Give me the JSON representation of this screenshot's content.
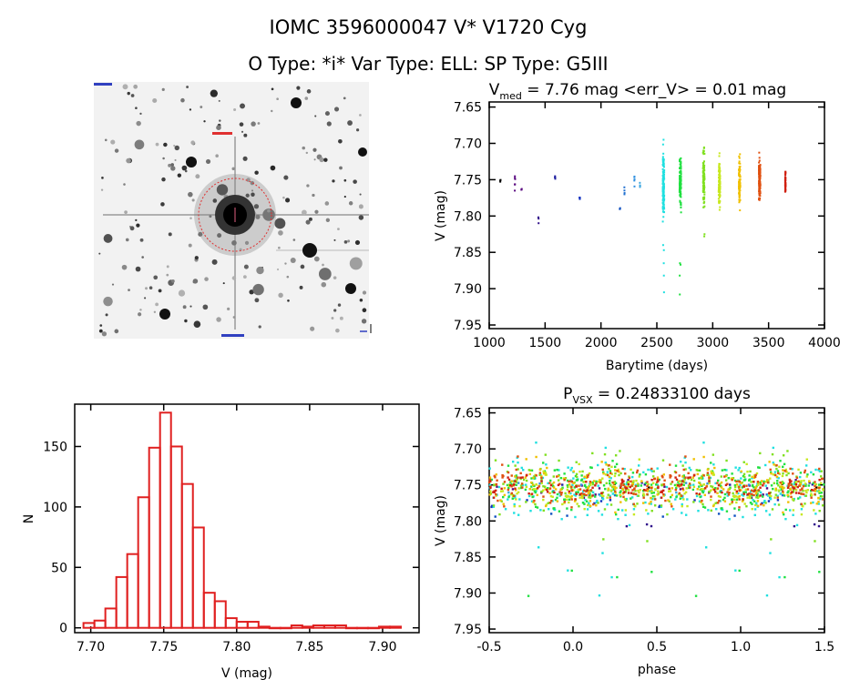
{
  "header": {
    "title": "IOMC 3596000047   V* V1720 Cyg",
    "subtitle": "O Type: *i*  Var Type: ELL:  SP Type: G5III"
  },
  "chart_data": [
    {
      "type": "image",
      "panel": "finding-chart",
      "description_colors": {
        "background": "#f4f4f4",
        "marker": "#e03030"
      }
    },
    {
      "type": "scatter",
      "panel": "light-curve",
      "title": {
        "main": "V",
        "sub": "med",
        "rest": " = 7.76 mag <err_V> = 0.01 mag"
      },
      "xlabel": "Barytime (days)",
      "ylabel": "V (mag)",
      "xlim": [
        1000,
        4000
      ],
      "ylim": [
        7.955,
        7.643
      ],
      "y_inverted": true,
      "xticks": [
        "1000",
        "1500",
        "2000",
        "2500",
        "3000",
        "3500",
        "4000"
      ],
      "yticks": [
        "7.65",
        "7.70",
        "7.75",
        "7.80",
        "7.85",
        "7.90",
        "7.95"
      ],
      "seasons": [
        {
          "time": 1100,
          "mag_min": 7.745,
          "mag_max": 7.76,
          "count": 3,
          "color": "#000000"
        },
        {
          "time": 1230,
          "mag_min": 7.735,
          "mag_max": 7.772,
          "count": 6,
          "color": "#5a0a80"
        },
        {
          "time": 1290,
          "mag_min": 7.758,
          "mag_max": 7.768,
          "count": 3,
          "color": "#5a0a80"
        },
        {
          "time": 1440,
          "mag_min": 7.788,
          "mag_max": 7.82,
          "count": 3,
          "color": "#30108a"
        },
        {
          "time": 1590,
          "mag_min": 7.744,
          "mag_max": 7.75,
          "count": 4,
          "color": "#2020a0"
        },
        {
          "time": 1810,
          "mag_min": 7.772,
          "mag_max": 7.78,
          "count": 6,
          "color": "#1030c0"
        },
        {
          "time": 2170,
          "mag_min": 7.785,
          "mag_max": 7.8,
          "count": 3,
          "color": "#1050c0"
        },
        {
          "time": 2210,
          "mag_min": 7.75,
          "mag_max": 7.775,
          "count": 4,
          "color": "#2070d0"
        },
        {
          "time": 2300,
          "mag_min": 7.725,
          "mag_max": 7.775,
          "count": 5,
          "color": "#3090e0"
        },
        {
          "time": 2350,
          "mag_min": 7.748,
          "mag_max": 7.765,
          "count": 4,
          "color": "#40a8e0"
        },
        {
          "time": 2560,
          "mag_min": 7.695,
          "mag_max": 7.82,
          "count": 120,
          "color": "#20e0e0",
          "outliers": [
            7.84,
            7.847,
            7.865,
            7.882,
            7.905
          ]
        },
        {
          "time": 2710,
          "mag_min": 7.71,
          "mag_max": 7.797,
          "count": 120,
          "color": "#20e040",
          "outliers": [
            7.865,
            7.867,
            7.882,
            7.908
          ]
        },
        {
          "time": 2920,
          "mag_min": 7.695,
          "mag_max": 7.8,
          "count": 100,
          "color": "#80e020",
          "outliers": [
            7.825,
            7.828
          ]
        },
        {
          "time": 3060,
          "mag_min": 7.712,
          "mag_max": 7.8,
          "count": 100,
          "color": "#c8e820"
        },
        {
          "time": 3240,
          "mag_min": 7.71,
          "mag_max": 7.8,
          "count": 90,
          "color": "#f0c000"
        },
        {
          "time": 3420,
          "mag_min": 7.71,
          "mag_max": 7.79,
          "count": 110,
          "color": "#e05010"
        },
        {
          "time": 3650,
          "mag_min": 7.73,
          "mag_max": 7.78,
          "count": 50,
          "color": "#d02010"
        }
      ]
    },
    {
      "type": "bar",
      "panel": "histogram",
      "xlabel": "V (mag)",
      "ylabel": "N",
      "xlim": [
        7.689,
        7.925
      ],
      "ylim": [
        -4,
        185
      ],
      "xticks": [
        "7.70",
        "7.75",
        "7.80",
        "7.85",
        "7.90"
      ],
      "yticks": [
        "0",
        "50",
        "100",
        "150"
      ],
      "bin_start": 7.695,
      "bin_width": 0.0075,
      "values": [
        4,
        6,
        16,
        42,
        61,
        108,
        149,
        178,
        150,
        119,
        83,
        29,
        22,
        8,
        5,
        5,
        1,
        0,
        0,
        2,
        1,
        2,
        2,
        2,
        0,
        0,
        0,
        1,
        1
      ],
      "color": "#e02020"
    },
    {
      "type": "scatter",
      "panel": "phased-curve",
      "title": {
        "main": "P",
        "sub": "VSX",
        "rest": " = 0.24833100 days"
      },
      "xlabel": "phase",
      "ylabel": "V (mag)",
      "period_days": 0.248331,
      "xlim": [
        -0.5,
        1.5
      ],
      "ylim": [
        7.955,
        7.643
      ],
      "y_inverted": true,
      "xticks": [
        "-0.5",
        "0.0",
        "0.5",
        "1.0",
        "1.5"
      ],
      "yticks": [
        "7.65",
        "7.70",
        "7.75",
        "7.80",
        "7.85",
        "7.90",
        "7.95"
      ]
    }
  ]
}
